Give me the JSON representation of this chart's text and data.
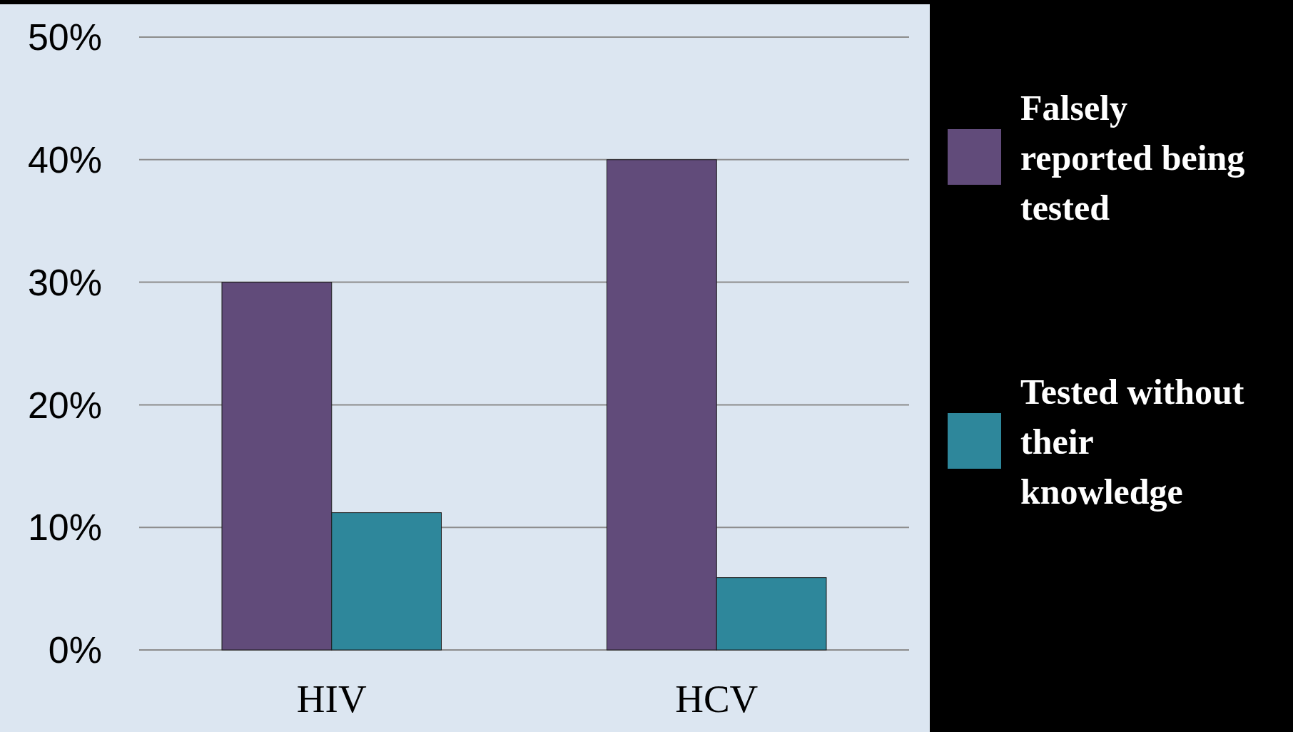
{
  "chart_data": {
    "type": "bar",
    "categories": [
      "HIV",
      "HCV"
    ],
    "series": [
      {
        "name": "Falsely reported being tested",
        "color": "#614b7a",
        "values": [
          30,
          40
        ]
      },
      {
        "name": "Tested without their knowledge",
        "color": "#2e879b",
        "values": [
          11.2,
          5.9
        ]
      }
    ],
    "ylim": [
      0,
      50
    ],
    "yticks": [
      {
        "value": 0,
        "label": "0%"
      },
      {
        "value": 10,
        "label": "10%"
      },
      {
        "value": 20,
        "label": "20%"
      },
      {
        "value": 30,
        "label": "30%"
      },
      {
        "value": 40,
        "label": "40%"
      },
      {
        "value": 50,
        "label": "50%"
      }
    ],
    "grid": "y",
    "legend": "right"
  }
}
